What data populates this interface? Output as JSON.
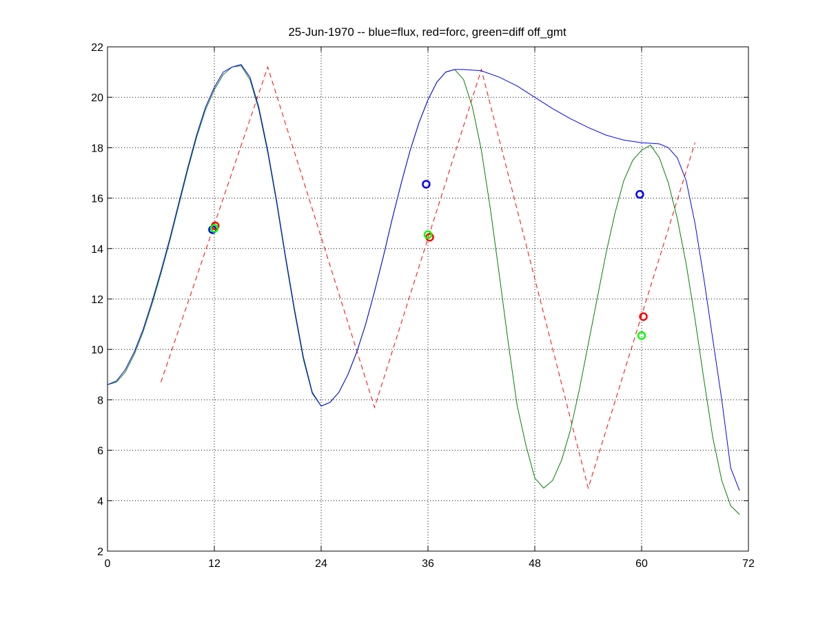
{
  "chart_data": {
    "type": "line",
    "title": "25-Jun-1970 -- blue=flux, red=forc, green=diff off_gmt",
    "xlabel": "",
    "ylabel": "",
    "xlim": [
      0,
      72
    ],
    "ylim": [
      2,
      22
    ],
    "xticks": [
      0,
      12,
      24,
      36,
      48,
      60,
      72
    ],
    "yticks": [
      2,
      4,
      6,
      8,
      10,
      12,
      14,
      16,
      18,
      20,
      22
    ],
    "grid": true,
    "colors": {
      "flux": "#0000ff",
      "forc": "#ff0000",
      "diff": "#008000",
      "diff_marker": "#00ff00"
    },
    "series": [
      {
        "key": "flux",
        "style": "solid",
        "x": [
          0,
          1,
          2,
          3,
          4,
          5,
          6,
          7,
          8,
          9,
          10,
          11,
          12,
          13,
          14,
          15,
          16,
          17,
          18,
          19,
          20,
          21,
          22,
          23,
          24,
          25,
          26,
          27,
          28,
          29,
          30,
          31,
          32,
          33,
          34,
          35,
          36,
          37,
          38,
          39,
          40,
          42,
          44,
          46,
          48,
          50,
          52,
          54,
          56,
          58,
          60,
          62,
          63,
          64,
          65,
          66,
          67,
          68,
          69,
          70,
          71
        ],
        "y": [
          8.6,
          8.75,
          9.2,
          9.9,
          10.8,
          11.9,
          13.1,
          14.4,
          15.8,
          17.2,
          18.5,
          19.6,
          20.4,
          21.0,
          21.2,
          21.3,
          20.8,
          19.6,
          17.9,
          15.9,
          13.7,
          11.6,
          9.7,
          8.3,
          7.75,
          7.9,
          8.3,
          9.0,
          9.9,
          11.0,
          12.3,
          13.7,
          15.2,
          16.6,
          17.9,
          19.0,
          19.9,
          20.6,
          21.0,
          21.1,
          21.1,
          21.05,
          20.8,
          20.45,
          20.0,
          19.55,
          19.15,
          18.8,
          18.5,
          18.3,
          18.2,
          18.15,
          18.0,
          17.6,
          16.7,
          15.0,
          12.8,
          10.4,
          8.0,
          5.3,
          4.4
        ]
      },
      {
        "key": "forc",
        "style": "dashed",
        "x": [
          6,
          18,
          30,
          42,
          54,
          66
        ],
        "y": [
          8.7,
          21.2,
          7.7,
          21.1,
          4.5,
          18.2
        ]
      },
      {
        "key": "diff",
        "style": "solid",
        "x": [
          0,
          1,
          2,
          3,
          4,
          5,
          6,
          7,
          8,
          9,
          10,
          11,
          12,
          13,
          14,
          15,
          16,
          17,
          18,
          19,
          20,
          21,
          22,
          23,
          24,
          25,
          26,
          27,
          28,
          29,
          30,
          31,
          32,
          33,
          34,
          35,
          36,
          37,
          38,
          39,
          40,
          41,
          42,
          43,
          44,
          45,
          46,
          47,
          48,
          49,
          50,
          51,
          52,
          53,
          54,
          55,
          56,
          57,
          58,
          59,
          60,
          61,
          62,
          63,
          64,
          65,
          66,
          67,
          68,
          69,
          70,
          71
        ],
        "y": [
          8.6,
          8.7,
          9.1,
          9.8,
          10.7,
          11.8,
          13.0,
          14.3,
          15.7,
          17.1,
          18.4,
          19.5,
          20.3,
          20.9,
          21.2,
          21.25,
          20.7,
          19.5,
          17.8,
          15.8,
          13.6,
          11.5,
          9.6,
          8.25,
          7.75,
          7.9,
          8.3,
          9.0,
          9.9,
          11.0,
          12.3,
          13.7,
          15.2,
          16.6,
          17.9,
          19.0,
          19.9,
          20.6,
          21.0,
          21.1,
          20.7,
          19.6,
          17.9,
          15.6,
          13.0,
          10.3,
          7.8,
          6.2,
          4.9,
          4.5,
          4.8,
          5.6,
          6.8,
          8.4,
          10.2,
          12.0,
          13.8,
          15.4,
          16.7,
          17.5,
          17.9,
          18.1,
          17.6,
          16.6,
          15.2,
          13.4,
          11.2,
          8.8,
          6.5,
          4.8,
          3.8,
          3.45
        ]
      }
    ],
    "markers": [
      {
        "key": "flux",
        "x": 11.8,
        "y": 14.75
      },
      {
        "key": "forc",
        "x": 12.1,
        "y": 14.9
      },
      {
        "key": "diff_marker",
        "x": 12.0,
        "y": 14.8
      },
      {
        "key": "flux",
        "x": 35.8,
        "y": 16.55
      },
      {
        "key": "forc",
        "x": 36.2,
        "y": 14.45
      },
      {
        "key": "diff_marker",
        "x": 36.0,
        "y": 14.55
      },
      {
        "key": "flux",
        "x": 59.8,
        "y": 16.15
      },
      {
        "key": "forc",
        "x": 60.2,
        "y": 11.3
      },
      {
        "key": "diff_marker",
        "x": 60.0,
        "y": 10.55
      }
    ]
  }
}
